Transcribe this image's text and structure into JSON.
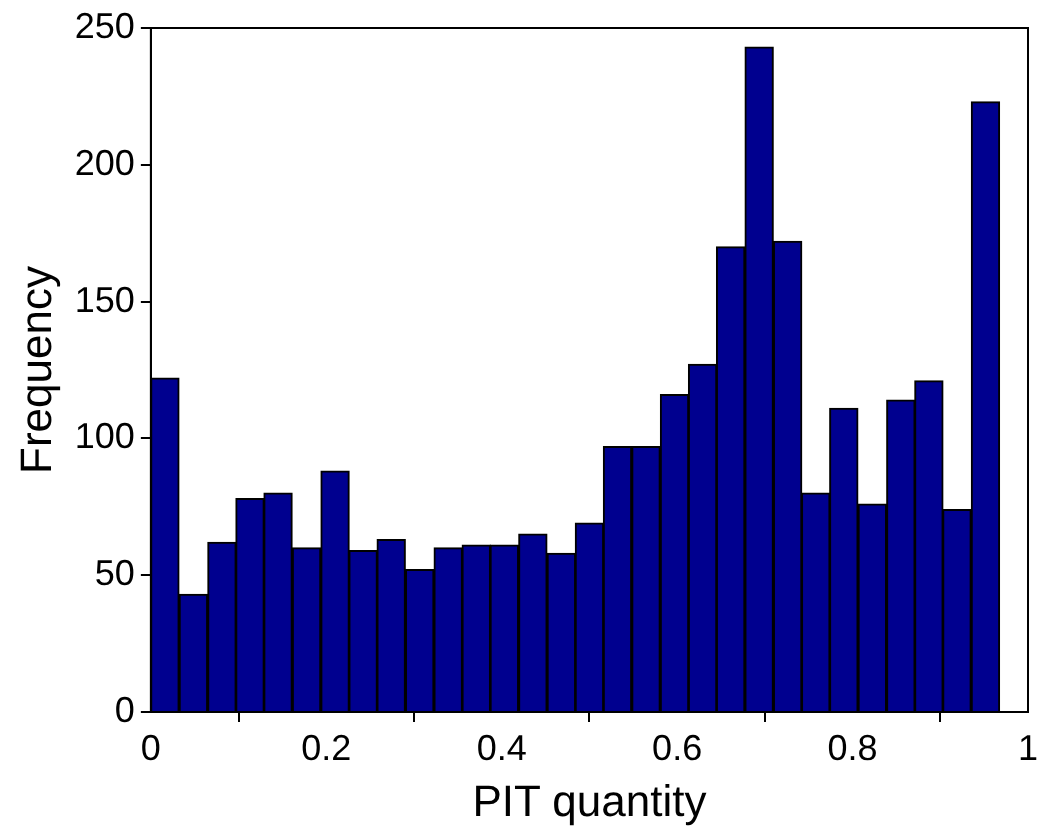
{
  "chart_data": {
    "type": "histogram",
    "xlabel": "PIT quantity",
    "ylabel": "Frequency",
    "color": "#00008f",
    "bins": [
      0,
      0.032,
      0.065,
      0.097,
      0.129,
      0.161,
      0.194,
      0.226,
      0.258,
      0.29,
      0.323,
      0.355,
      0.387,
      0.419,
      0.452,
      0.484,
      0.516,
      0.548,
      0.581,
      0.613,
      0.645,
      0.677,
      0.71,
      0.742,
      0.774,
      0.806,
      0.839,
      0.871,
      0.903,
      0.935,
      0.968
    ],
    "values": [
      122,
      43,
      62,
      78,
      80,
      60,
      88,
      59,
      63,
      52,
      60,
      61,
      61,
      65,
      58,
      69,
      97,
      97,
      116,
      127,
      170,
      243,
      172,
      80,
      111,
      76,
      114,
      121,
      74,
      223
    ],
    "xlim": [
      0,
      1
    ],
    "xticks": [
      0,
      0.2,
      0.4,
      0.6,
      0.8,
      1
    ],
    "ylim": [
      0,
      250
    ],
    "yticks": [
      0,
      50,
      100,
      150,
      200,
      250
    ],
    "grid": false
  }
}
